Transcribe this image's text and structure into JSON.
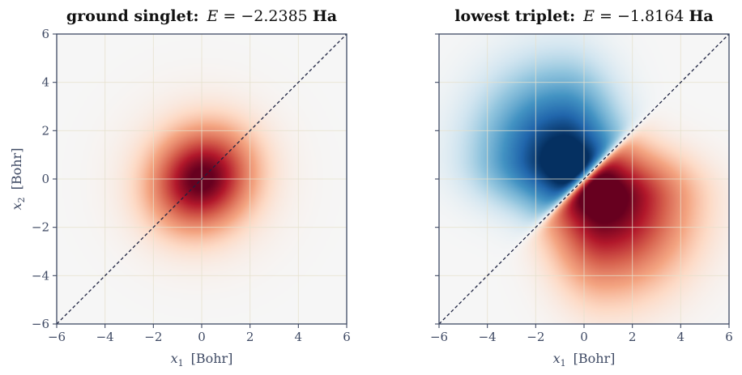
{
  "chart_data": [
    {
      "type": "heatmap",
      "title_bold": "ground singlet:",
      "title_math_var": "E",
      "title_math_rest": " = −2.2385 ",
      "title_unit": "Ha",
      "xlabel_var": "x",
      "xlabel_sub": "1",
      "xlabel_unit": "[Bohr]",
      "ylabel_var": "x",
      "ylabel_sub": "2",
      "ylabel_unit": "[Bohr]",
      "xlim": [
        -6,
        6
      ],
      "ylim": [
        -6,
        6
      ],
      "xticks": [
        -6,
        -4,
        -2,
        0,
        2,
        4,
        6
      ],
      "yticks": [
        -6,
        -4,
        -2,
        0,
        2,
        4,
        6
      ],
      "xtick_labels": [
        "−6",
        "−4",
        "−2",
        "0",
        "2",
        "4",
        "6"
      ],
      "ytick_labels": [
        "−6",
        "−4",
        "−2",
        "0",
        "2",
        "4",
        "6"
      ],
      "colormap": "diverging red-blue",
      "grid": true,
      "diagonal_reference_line": "x2 = x1 (dashed)",
      "features": [
        {
          "sign": "positive",
          "color": "#67001f",
          "center": [
            0.1,
            -0.1
          ],
          "peak": 1.0
        }
      ]
    },
    {
      "type": "heatmap",
      "title_bold": "lowest triplet:",
      "title_math_var": "E",
      "title_math_rest": " = −1.8164 ",
      "title_unit": "Ha",
      "xlabel_var": "x",
      "xlabel_sub": "1",
      "xlabel_unit": "[Bohr]",
      "xlim": [
        -6,
        6
      ],
      "ylim": [
        -6,
        6
      ],
      "xticks": [
        -6,
        -4,
        -2,
        0,
        2,
        4,
        6
      ],
      "yticks": [
        -6,
        -4,
        -2,
        0,
        2,
        4,
        6
      ],
      "xtick_labels": [
        "−6",
        "−4",
        "−2",
        "0",
        "2",
        "4",
        "6"
      ],
      "colormap": "diverging red-blue",
      "grid": true,
      "diagonal_reference_line": "x2 = x1 (dashed)",
      "features": [
        {
          "sign": "negative",
          "color": "#053061",
          "center": [
            -1.0,
            1.0
          ],
          "peak": -1.0
        },
        {
          "sign": "positive",
          "color": "#67001f",
          "center": [
            1.0,
            -1.0
          ],
          "peak": 1.0
        }
      ]
    }
  ]
}
